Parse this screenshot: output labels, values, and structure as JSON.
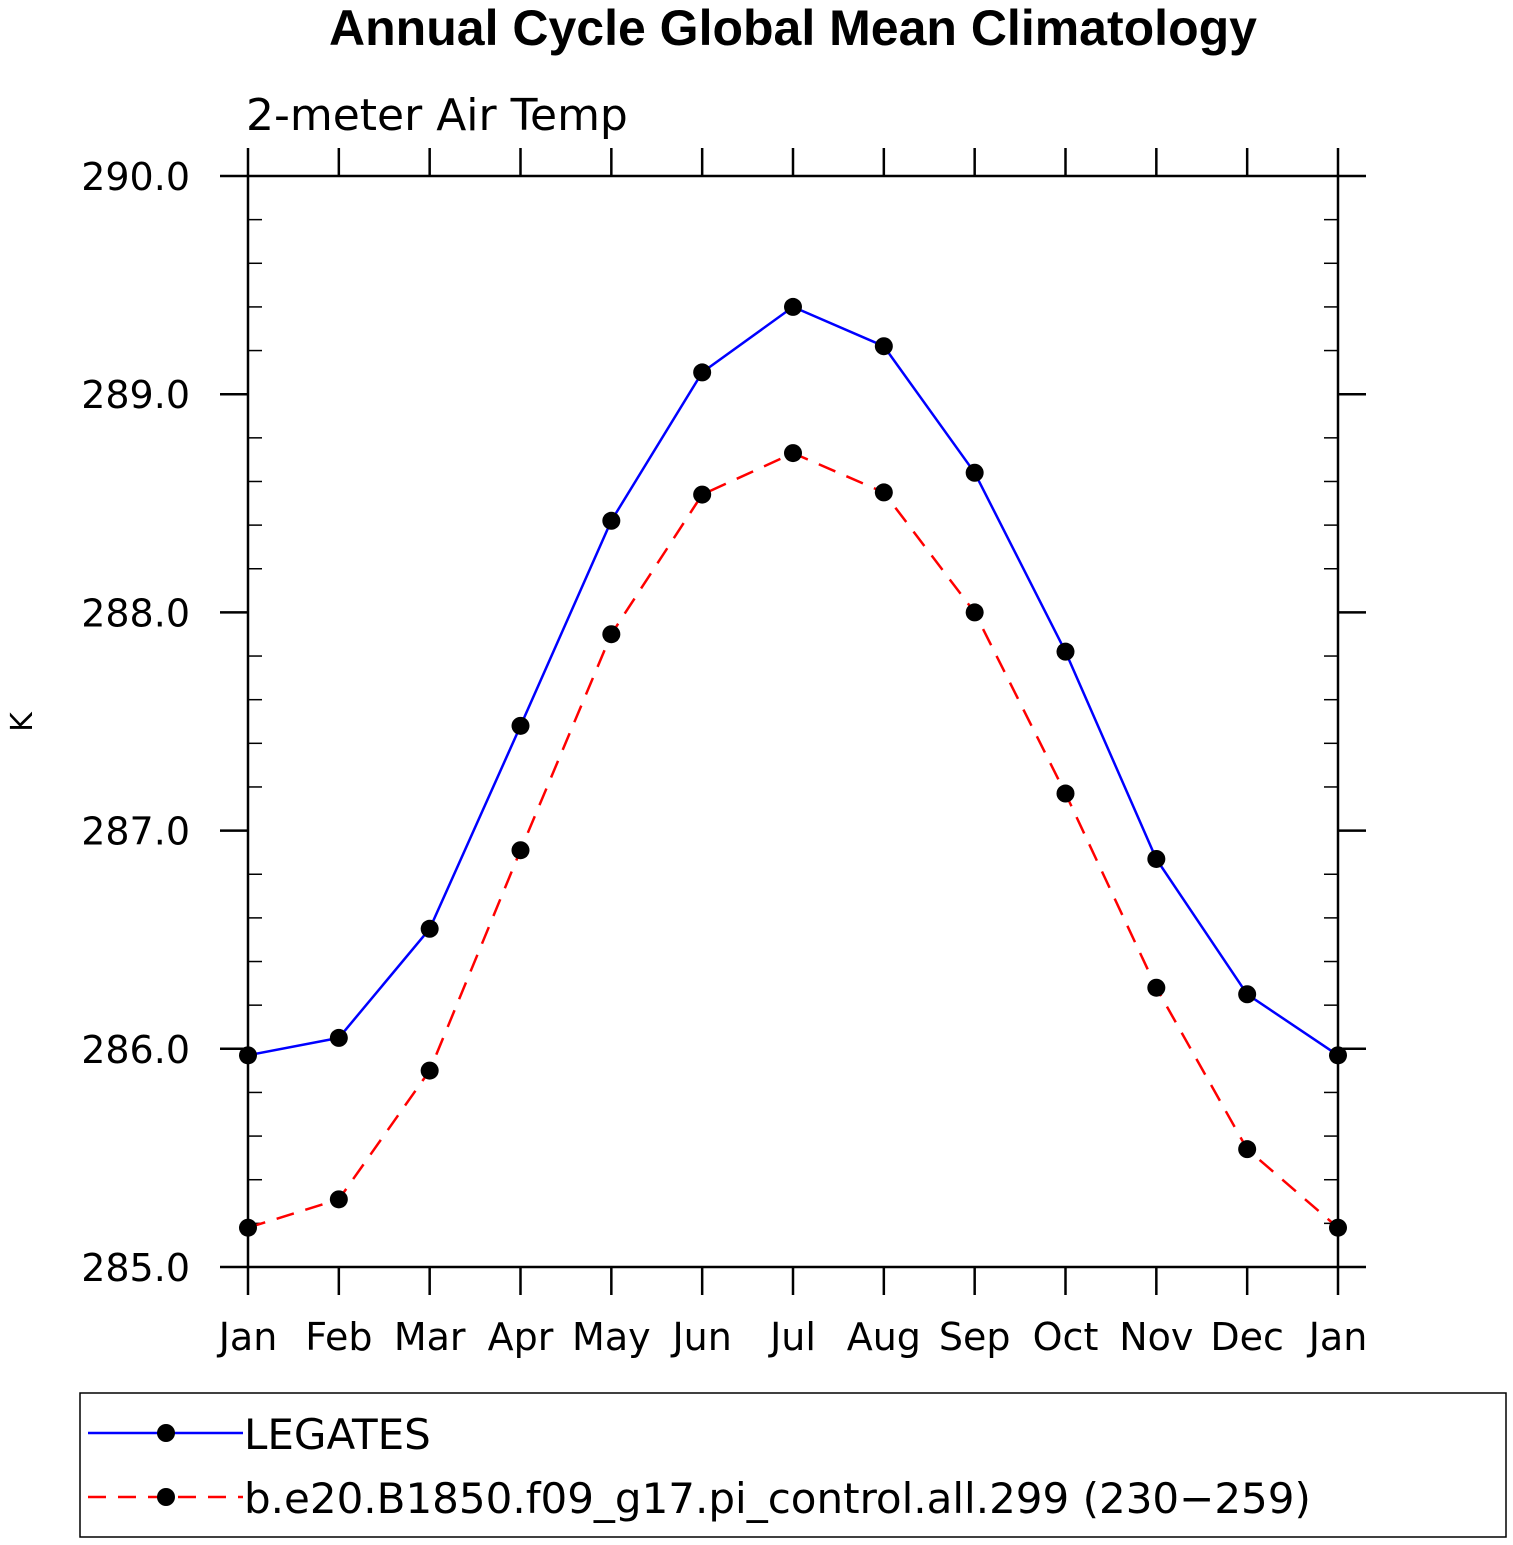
{
  "chart_data": {
    "type": "line",
    "title": "Annual Cycle Global Mean Climatology",
    "subtitle": "2-meter Air Temp",
    "xlabel": "",
    "ylabel": "K",
    "categories": [
      "Jan",
      "Feb",
      "Mar",
      "Apr",
      "May",
      "Jun",
      "Jul",
      "Aug",
      "Sep",
      "Oct",
      "Nov",
      "Dec",
      "Jan"
    ],
    "ylim": [
      285.0,
      290.0
    ],
    "yticks": [
      "285.0",
      "286.0",
      "287.0",
      "288.0",
      "289.0",
      "290.0"
    ],
    "series": [
      {
        "name": "LEGATES",
        "color": "#0000ff",
        "style": "solid",
        "values": [
          285.97,
          286.05,
          286.55,
          287.48,
          288.42,
          289.1,
          289.4,
          289.22,
          288.64,
          287.82,
          286.87,
          286.25,
          285.97
        ]
      },
      {
        "name": "b.e20.B1850.f09_g17.pi_control.all.299 (230−259)",
        "color": "#ff0000",
        "style": "dashed",
        "values": [
          285.18,
          285.31,
          285.9,
          286.91,
          287.9,
          288.54,
          288.73,
          288.55,
          288.0,
          287.17,
          286.28,
          285.54,
          285.18
        ]
      }
    ],
    "grid": false,
    "legend_position": "bottom"
  }
}
